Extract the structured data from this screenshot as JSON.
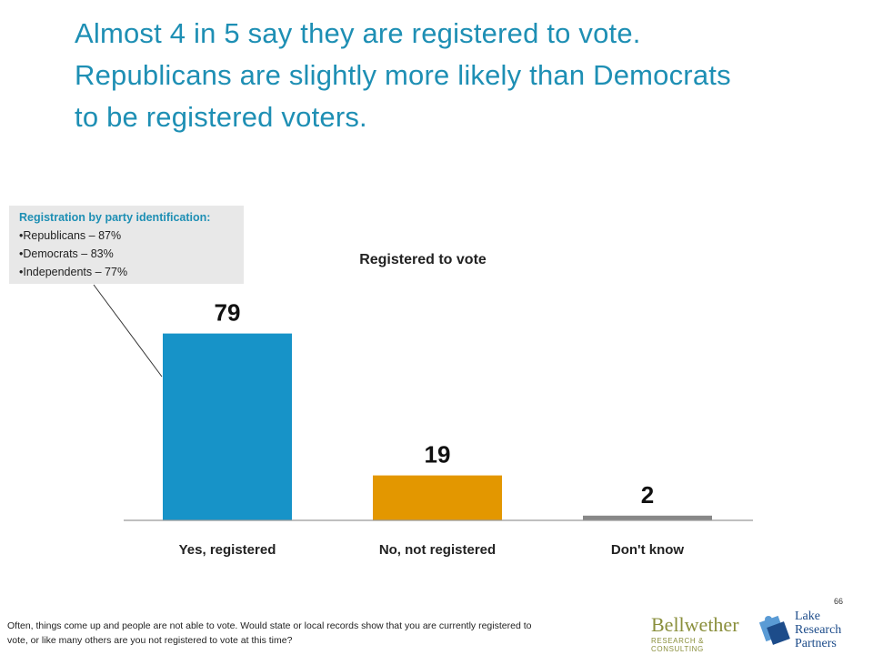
{
  "headline": {
    "line1": "Almost 4 in 5 say they are registered to vote.",
    "line2": "Republicans are slightly more likely than Democrats",
    "line3": "to be registered voters."
  },
  "callout": {
    "title": "Registration by party identification:",
    "items": [
      "•Republicans –  87%",
      "•Democrats –  83%",
      "•Independents  – 77%"
    ]
  },
  "chart_data": {
    "type": "bar",
    "title": "Registered to vote",
    "categories": [
      "Yes, registered",
      "No, not registered",
      "Don't know"
    ],
    "values": [
      79,
      19,
      2
    ],
    "colors": [
      "#1793c8",
      "#e39700",
      "#888888"
    ],
    "ylim": [
      0,
      100
    ],
    "grid": false,
    "legend": "none"
  },
  "footnote": "Often, things come up and people are not able to vote. Would state or local records show that you are currently registered to vote, or  like many others are you not registered to vote at this time?",
  "page_number": "66",
  "logos": {
    "bellwether": {
      "name": "Bellwether",
      "sub": "RESEARCH & CONSULTING"
    },
    "lake": {
      "line1": "Lake",
      "line2": "Research",
      "line3": "Partners"
    }
  }
}
